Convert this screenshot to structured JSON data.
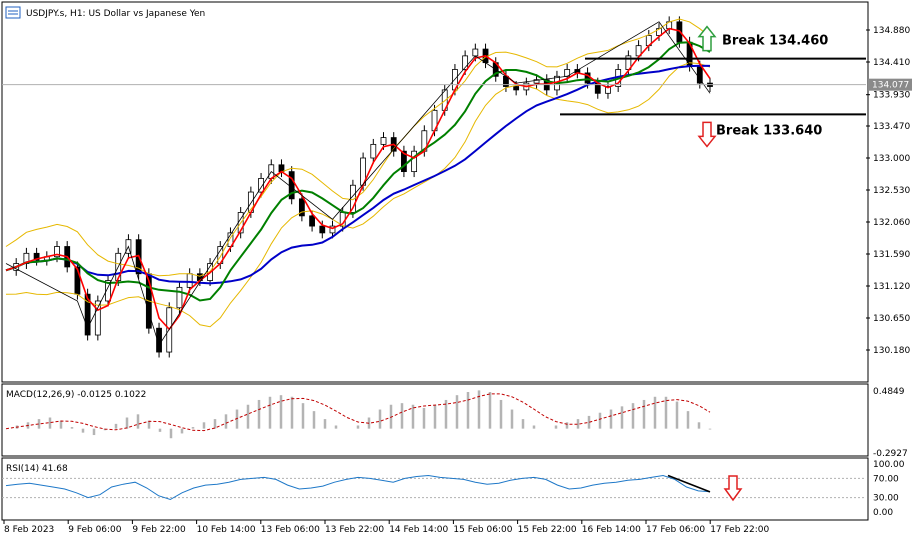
{
  "chart_data": {
    "type": "candlestick",
    "title": "USDJPY.s, H1:  US Dollar vs Japanese Yen",
    "price_axis": {
      "ticks": [
        "134.880",
        "134.410",
        "133.930",
        "133.470",
        "133.000",
        "132.530",
        "132.060",
        "131.590",
        "131.120",
        "130.650",
        "130.180"
      ],
      "current_price": "134.077"
    },
    "time_axis": {
      "ticks": [
        "8 Feb 2023",
        "9 Feb 06:00",
        "9 Feb 22:00",
        "10 Feb 14:00",
        "13 Feb 06:00",
        "13 Feb 22:00",
        "14 Feb 14:00",
        "15 Feb 06:00",
        "15 Feb 22:00",
        "16 Feb 14:00",
        "17 Feb 06:00",
        "17 Feb 22:00"
      ]
    },
    "price_series": [
      131.35,
      131.45,
      131.6,
      131.5,
      131.55,
      131.7,
      131.4,
      131.0,
      130.4,
      130.9,
      131.2,
      131.6,
      131.8,
      131.3,
      130.5,
      130.15,
      130.8,
      131.1,
      131.3,
      131.2,
      131.45,
      131.7,
      131.9,
      132.2,
      132.5,
      132.7,
      132.9,
      132.8,
      132.4,
      132.15,
      132.0,
      131.9,
      132.0,
      132.2,
      132.6,
      133.0,
      133.2,
      133.3,
      133.1,
      132.8,
      133.1,
      133.4,
      133.7,
      134.0,
      134.3,
      134.5,
      134.6,
      134.4,
      134.2,
      134.05,
      134.0,
      134.1,
      134.15,
      134.0,
      134.2,
      134.3,
      134.25,
      134.1,
      133.95,
      134.05,
      134.3,
      134.5,
      134.65,
      134.8,
      134.9,
      135.0,
      134.7,
      134.35,
      134.1,
      134.05
    ],
    "indicators": {
      "ma_fast": {
        "color": "#ff0000"
      },
      "ma_mid": {
        "color": "#008000"
      },
      "ma_slow": {
        "color": "#0000c8"
      },
      "bollinger": {
        "color": "#e6b800"
      }
    },
    "levels": [
      {
        "price": 134.46,
        "label": "Break 134.460",
        "arrow": "up",
        "arrow_color": "#2e9e3e"
      },
      {
        "price": 133.64,
        "label": "Break 133.640",
        "arrow": "down",
        "arrow_color": "#e02020"
      }
    ],
    "macd": {
      "label": "MACD(12,26,9) -0.0125 0.1022",
      "ticks": [
        "0.4849",
        "-0.2927"
      ],
      "values": [
        0.0,
        0.04,
        0.08,
        0.12,
        0.14,
        0.1,
        0.02,
        -0.05,
        -0.08,
        -0.02,
        0.06,
        0.14,
        0.18,
        0.1,
        -0.04,
        -0.12,
        -0.06,
        0.02,
        0.08,
        0.12,
        0.18,
        0.24,
        0.3,
        0.36,
        0.4,
        0.42,
        0.4,
        0.32,
        0.22,
        0.12,
        0.04,
        0.0,
        0.04,
        0.14,
        0.24,
        0.3,
        0.32,
        0.3,
        0.26,
        0.3,
        0.36,
        0.42,
        0.46,
        0.48,
        0.46,
        0.36,
        0.24,
        0.12,
        0.04,
        0.0,
        0.04,
        0.08,
        0.12,
        0.16,
        0.2,
        0.24,
        0.28,
        0.32,
        0.36,
        0.4,
        0.4,
        0.34,
        0.22,
        0.08,
        -0.01
      ],
      "signal_color": "#c00000",
      "hist_color": "#b4b4b4"
    },
    "rsi": {
      "label": "RSI(14) 41.68",
      "ticks": [
        "100.00",
        "70.00",
        "30.00",
        "0.00"
      ],
      "values": [
        55,
        58,
        60,
        56,
        52,
        48,
        40,
        30,
        36,
        52,
        58,
        62,
        50,
        34,
        26,
        40,
        50,
        56,
        58,
        62,
        68,
        70,
        72,
        68,
        56,
        48,
        50,
        54,
        62,
        68,
        72,
        70,
        66,
        62,
        70,
        74,
        76,
        72,
        70,
        68,
        62,
        58,
        60,
        66,
        70,
        72,
        68,
        56,
        48,
        50,
        56,
        60,
        62,
        66,
        68,
        72,
        76,
        68,
        52,
        44,
        42
      ],
      "line_color": "#1e78c8",
      "arrow_color": "#e02020"
    }
  }
}
